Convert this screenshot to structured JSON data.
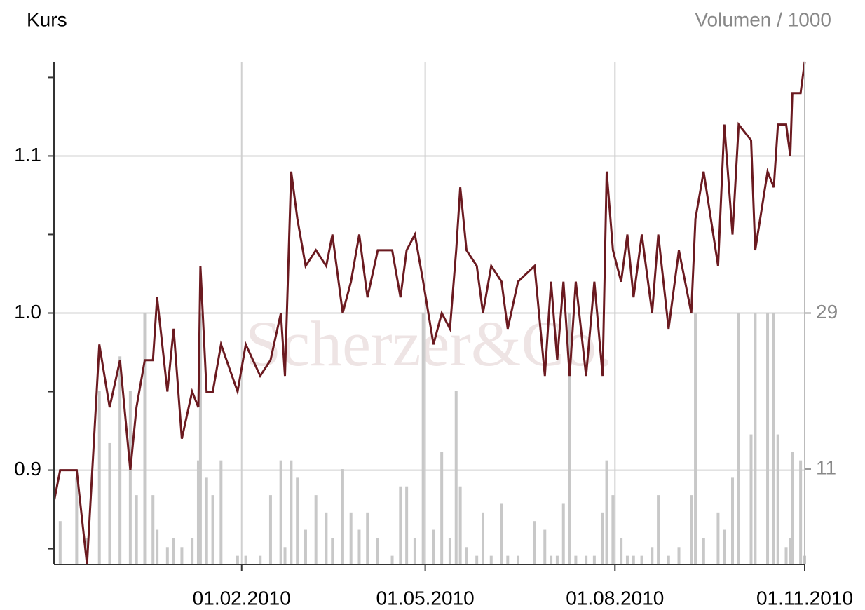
{
  "chart_data": {
    "type": "line",
    "title": "Kurs",
    "y2_label": "Volumen / 1000",
    "watermark": "Scherzer&Co.",
    "x": [
      "2009-11-02",
      "2009-11-05",
      "2009-11-13",
      "2009-11-18",
      "2009-11-24",
      "2009-11-29",
      "2009-12-04",
      "2009-12-09",
      "2009-12-12",
      "2009-12-16",
      "2009-12-20",
      "2009-12-22",
      "2009-12-27",
      "2009-12-30",
      "2010-01-03",
      "2010-01-08",
      "2010-01-11",
      "2010-01-12",
      "2010-01-15",
      "2010-01-18",
      "2010-01-22",
      "2010-01-30",
      "2010-02-03",
      "2010-02-10",
      "2010-02-15",
      "2010-02-20",
      "2010-02-22",
      "2010-02-25",
      "2010-02-28",
      "2010-03-04",
      "2010-03-09",
      "2010-03-14",
      "2010-03-17",
      "2010-03-22",
      "2010-03-26",
      "2010-03-30",
      "2010-04-03",
      "2010-04-08",
      "2010-04-15",
      "2010-04-19",
      "2010-04-22",
      "2010-04-26",
      "2010-04-30",
      "2010-05-05",
      "2010-05-09",
      "2010-05-13",
      "2010-05-16",
      "2010-05-18",
      "2010-05-21",
      "2010-05-26",
      "2010-05-29",
      "2010-06-02",
      "2010-06-07",
      "2010-06-10",
      "2010-06-15",
      "2010-06-23",
      "2010-06-28",
      "2010-07-01",
      "2010-07-04",
      "2010-07-07",
      "2010-07-10",
      "2010-07-13",
      "2010-07-18",
      "2010-07-22",
      "2010-07-26",
      "2010-07-28",
      "2010-07-31",
      "2010-08-04",
      "2010-08-07",
      "2010-08-10",
      "2010-08-14",
      "2010-08-19",
      "2010-08-22",
      "2010-08-27",
      "2010-09-01",
      "2010-09-07",
      "2010-09-09",
      "2010-09-13",
      "2010-09-20",
      "2010-09-23",
      "2010-09-27",
      "2010-09-30",
      "2010-10-06",
      "2010-10-08",
      "2010-10-14",
      "2010-10-17",
      "2010-10-19",
      "2010-10-23",
      "2010-10-25",
      "2010-10-26",
      "2010-10-30",
      "2010-11-01"
    ],
    "series": [
      {
        "color": "#6b1a20",
        "values": [
          0.88,
          0.9,
          0.9,
          0.84,
          0.98,
          0.94,
          0.97,
          0.9,
          0.94,
          0.97,
          0.97,
          1.01,
          0.95,
          0.99,
          0.92,
          0.95,
          0.94,
          1.03,
          0.95,
          0.95,
          0.98,
          0.95,
          0.98,
          0.96,
          0.97,
          1.0,
          0.96,
          1.09,
          1.06,
          1.03,
          1.04,
          1.03,
          1.05,
          1.0,
          1.02,
          1.05,
          1.01,
          1.04,
          1.04,
          1.01,
          1.04,
          1.05,
          1.02,
          0.98,
          1.0,
          0.99,
          1.04,
          1.08,
          1.04,
          1.03,
          1.0,
          1.03,
          1.02,
          0.99,
          1.02,
          1.03,
          0.96,
          1.02,
          0.97,
          1.02,
          0.96,
          1.02,
          0.96,
          1.02,
          0.96,
          1.09,
          1.04,
          1.02,
          1.05,
          1.01,
          1.05,
          1.0,
          1.05,
          0.99,
          1.04,
          1.0,
          1.06,
          1.09,
          1.03,
          1.12,
          1.05,
          1.12,
          1.11,
          1.04,
          1.09,
          1.08,
          1.12,
          1.12,
          1.1,
          1.14,
          1.14,
          1.16
        ]
      },
      {
        "color": "#c8c8c8",
        "axis": "y2",
        "values": [
          1,
          5,
          10,
          3,
          20,
          14,
          24,
          20,
          8,
          29,
          8,
          4,
          2,
          3,
          2,
          3,
          12,
          29,
          10,
          8,
          12,
          1,
          1,
          1,
          8,
          12,
          2,
          12,
          10,
          4,
          8,
          6,
          3,
          11,
          6,
          4,
          6,
          3,
          1,
          9,
          9,
          3,
          29,
          4,
          13,
          3,
          20,
          9,
          2,
          1,
          6,
          1,
          7,
          1,
          1,
          5,
          4,
          1,
          1,
          7,
          29,
          1,
          1,
          1,
          6,
          12,
          8,
          3,
          1,
          1,
          1,
          2,
          8,
          1,
          2,
          8,
          29,
          3,
          6,
          4,
          10,
          29,
          15,
          29,
          29,
          29,
          15,
          2,
          3,
          13,
          12,
          1
        ]
      }
    ],
    "xlim": [
      "2009-11-02",
      "2010-11-01"
    ],
    "xticks": [
      {
        "value": "2010-02-01",
        "label": "01.02.2010"
      },
      {
        "value": "2010-05-01",
        "label": "01.05.2010"
      },
      {
        "value": "2010-08-01",
        "label": "01.08.2010"
      },
      {
        "value": "2010-11-01",
        "label": "01.11.2010"
      }
    ],
    "ylim": [
      0.84,
      1.16
    ],
    "yticks": [
      0.9,
      {
        "value": 1,
        "label": "1.0"
      },
      1.1
    ],
    "yminorticks": [
      0.85,
      0.95,
      1.05,
      1.15
    ],
    "y2lim": [
      0,
      58
    ],
    "y2ticks": [
      11,
      29
    ],
    "grid": true
  }
}
